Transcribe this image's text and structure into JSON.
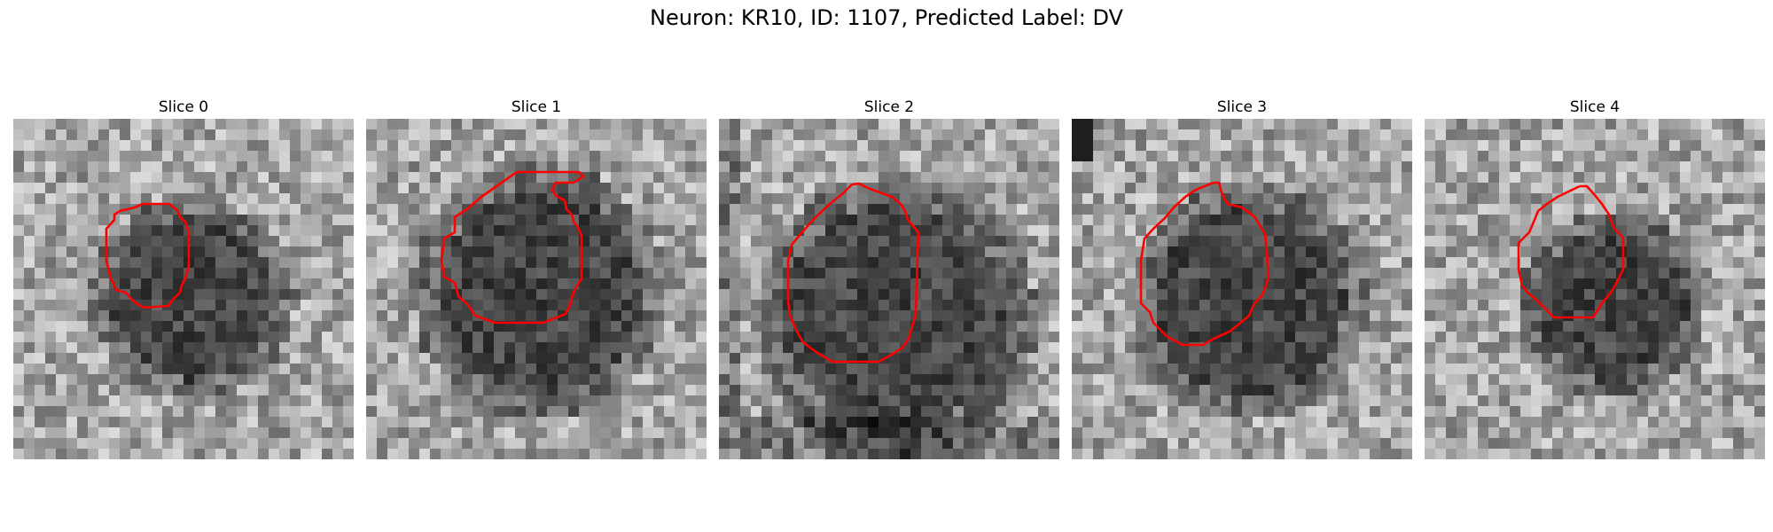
{
  "figure": {
    "title": "Neuron: KR10, ID: 1107, Predicted Label: DV",
    "contour_color": "#ff0000"
  },
  "slices": [
    {
      "title": "Slice 0",
      "pattern": "ring-dark-blob",
      "center": [
        0.53,
        0.53
      ],
      "radius": 0.24
    },
    {
      "title": "Slice 1",
      "pattern": "dark-blob",
      "center": [
        0.51,
        0.51
      ],
      "radius": 0.3
    },
    {
      "title": "Slice 2",
      "pattern": "dark-blob",
      "center": [
        0.52,
        0.58
      ],
      "radius": 0.33
    },
    {
      "title": "Slice 3",
      "pattern": "dark-blob",
      "center": [
        0.52,
        0.54
      ],
      "radius": 0.28
    },
    {
      "title": "Slice 4",
      "pattern": "dark-blob",
      "center": [
        0.55,
        0.55
      ],
      "radius": 0.22
    }
  ]
}
